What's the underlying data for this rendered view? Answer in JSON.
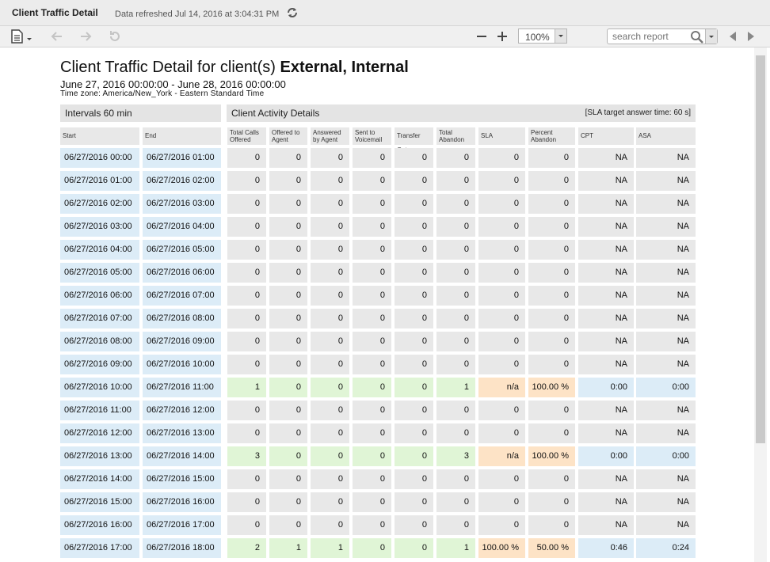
{
  "window": {
    "title": "Client Traffic Detail",
    "refreshed": "Data refreshed Jul 14, 2016 at 3:04:31 PM"
  },
  "toolbar": {
    "zoom": "100%",
    "search_placeholder": "search report"
  },
  "report": {
    "title_prefix": "Client Traffic Detail for client(s) ",
    "title_bold": "External, Internal",
    "date_range": "June 27, 2016 00:00:00 - June 28, 2016 00:00:00",
    "timezone": "Time zone: America/New_York - Eastern Standard Time",
    "intervals_label": "Intervals 60 min",
    "activity_label": "Client Activity Details",
    "sla_target": "[SLA target answer time: 60 s]",
    "columns": [
      "Start",
      "End",
      "Total Calls Offered",
      "Offered to Agent",
      "Answered by Agent",
      "Sent to Voicemail",
      "Transfer Out",
      "Total Abandon",
      "SLA",
      "Percent Abandon",
      "CPT",
      "ASA"
    ],
    "rows": [
      [
        "06/27/2016 00:00",
        "06/27/2016 01:00",
        "0",
        "0",
        "0",
        "0",
        "0",
        "0",
        "0",
        "0",
        "NA",
        "NA"
      ],
      [
        "06/27/2016 01:00",
        "06/27/2016 02:00",
        "0",
        "0",
        "0",
        "0",
        "0",
        "0",
        "0",
        "0",
        "NA",
        "NA"
      ],
      [
        "06/27/2016 02:00",
        "06/27/2016 03:00",
        "0",
        "0",
        "0",
        "0",
        "0",
        "0",
        "0",
        "0",
        "NA",
        "NA"
      ],
      [
        "06/27/2016 03:00",
        "06/27/2016 04:00",
        "0",
        "0",
        "0",
        "0",
        "0",
        "0",
        "0",
        "0",
        "NA",
        "NA"
      ],
      [
        "06/27/2016 04:00",
        "06/27/2016 05:00",
        "0",
        "0",
        "0",
        "0",
        "0",
        "0",
        "0",
        "0",
        "NA",
        "NA"
      ],
      [
        "06/27/2016 05:00",
        "06/27/2016 06:00",
        "0",
        "0",
        "0",
        "0",
        "0",
        "0",
        "0",
        "0",
        "NA",
        "NA"
      ],
      [
        "06/27/2016 06:00",
        "06/27/2016 07:00",
        "0",
        "0",
        "0",
        "0",
        "0",
        "0",
        "0",
        "0",
        "NA",
        "NA"
      ],
      [
        "06/27/2016 07:00",
        "06/27/2016 08:00",
        "0",
        "0",
        "0",
        "0",
        "0",
        "0",
        "0",
        "0",
        "NA",
        "NA"
      ],
      [
        "06/27/2016 08:00",
        "06/27/2016 09:00",
        "0",
        "0",
        "0",
        "0",
        "0",
        "0",
        "0",
        "0",
        "NA",
        "NA"
      ],
      [
        "06/27/2016 09:00",
        "06/27/2016 10:00",
        "0",
        "0",
        "0",
        "0",
        "0",
        "0",
        "0",
        "0",
        "NA",
        "NA"
      ],
      [
        "06/27/2016 10:00",
        "06/27/2016 11:00",
        "1",
        "0",
        "0",
        "0",
        "0",
        "1",
        "n/a",
        "100.00 %",
        "0:00",
        "0:00"
      ],
      [
        "06/27/2016 11:00",
        "06/27/2016 12:00",
        "0",
        "0",
        "0",
        "0",
        "0",
        "0",
        "0",
        "0",
        "NA",
        "NA"
      ],
      [
        "06/27/2016 12:00",
        "06/27/2016 13:00",
        "0",
        "0",
        "0",
        "0",
        "0",
        "0",
        "0",
        "0",
        "NA",
        "NA"
      ],
      [
        "06/27/2016 13:00",
        "06/27/2016 14:00",
        "3",
        "0",
        "0",
        "0",
        "0",
        "3",
        "n/a",
        "100.00 %",
        "0:00",
        "0:00"
      ],
      [
        "06/27/2016 14:00",
        "06/27/2016 15:00",
        "0",
        "0",
        "0",
        "0",
        "0",
        "0",
        "0",
        "0",
        "NA",
        "NA"
      ],
      [
        "06/27/2016 15:00",
        "06/27/2016 16:00",
        "0",
        "0",
        "0",
        "0",
        "0",
        "0",
        "0",
        "0",
        "NA",
        "NA"
      ],
      [
        "06/27/2016 16:00",
        "06/27/2016 17:00",
        "0",
        "0",
        "0",
        "0",
        "0",
        "0",
        "0",
        "0",
        "NA",
        "NA"
      ],
      [
        "06/27/2016 17:00",
        "06/27/2016 18:00",
        "2",
        "1",
        "1",
        "0",
        "0",
        "1",
        "100.00 %",
        "50.00 %",
        "0:46",
        "0:24"
      ]
    ]
  },
  "colors": {
    "date_cell": "#dcecf7",
    "grey_cell": "#e8e8e8",
    "activity_highlight": "#e0f5d6",
    "sla_highlight": "#fde3c6",
    "time_highlight": "#dcecf7"
  },
  "icons": [
    "export-icon",
    "undo-icon",
    "redo-icon",
    "reset-icon",
    "refresh-icon",
    "zoom-out-icon",
    "zoom-in-icon",
    "search-icon",
    "prev-icon",
    "next-icon"
  ]
}
